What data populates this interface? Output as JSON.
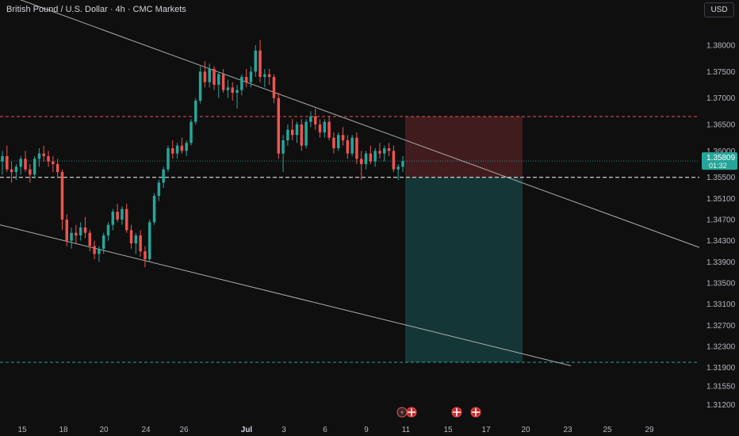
{
  "header": {
    "title": "British Pound / U.S. Dollar · 4h · CMC Markets",
    "currency_button": "USD"
  },
  "price_label": {
    "price": "1.35809",
    "countdown": "01:32"
  },
  "colors": {
    "up": "#26a69a",
    "down": "#ef5350",
    "background": "#0f0f0f",
    "stop_zone": "#4a1f22",
    "target_zone": "#16393a",
    "trendline": "#c8c8c8",
    "stop_line": "#ef5350",
    "target_line": "#26a69a"
  },
  "icons": [
    "lightning-flag-icon",
    "uk-flag-icon",
    "us-flag-icon",
    "uk-flag-icon"
  ],
  "chart_data": {
    "type": "candlestick",
    "symbol": "GBPUSD",
    "timeframe": "4h",
    "y_axis_ticks": [
      "1.38000",
      "1.37500",
      "1.37000",
      "1.36500",
      "1.36000",
      "1.35500",
      "1.35100",
      "1.34700",
      "1.34300",
      "1.33900",
      "1.33500",
      "1.33100",
      "1.32700",
      "1.32300",
      "1.31900",
      "1.31550",
      "1.31200"
    ],
    "x_axis_ticks": [
      "15",
      "18",
      "20",
      "24",
      "26",
      "Jul",
      "3",
      "6",
      "9",
      "11",
      "15",
      "17",
      "20",
      "23",
      "25",
      "29"
    ],
    "last_price": 1.35809,
    "ohlc": [
      [
        1.358,
        1.36,
        1.3555,
        1.359
      ],
      [
        1.359,
        1.361,
        1.356,
        1.3565
      ],
      [
        1.3565,
        1.358,
        1.354,
        1.356
      ],
      [
        1.356,
        1.3575,
        1.3545,
        1.357
      ],
      [
        1.357,
        1.359,
        1.3555,
        1.3585
      ],
      [
        1.3585,
        1.36,
        1.356,
        1.3565
      ],
      [
        1.3565,
        1.3575,
        1.354,
        1.3555
      ],
      [
        1.3555,
        1.359,
        1.3548,
        1.3585
      ],
      [
        1.3585,
        1.3605,
        1.357,
        1.3595
      ],
      [
        1.3595,
        1.361,
        1.358,
        1.359
      ],
      [
        1.359,
        1.36,
        1.357,
        1.358
      ],
      [
        1.358,
        1.359,
        1.356,
        1.3575
      ],
      [
        1.3575,
        1.3585,
        1.355,
        1.356
      ],
      [
        1.356,
        1.3565,
        1.345,
        1.347
      ],
      [
        1.347,
        1.348,
        1.342,
        1.343
      ],
      [
        1.343,
        1.3455,
        1.3415,
        1.3445
      ],
      [
        1.3445,
        1.346,
        1.3425,
        1.344
      ],
      [
        1.344,
        1.3465,
        1.343,
        1.3455
      ],
      [
        1.3455,
        1.3475,
        1.3435,
        1.3445
      ],
      [
        1.3445,
        1.345,
        1.341,
        1.342
      ],
      [
        1.342,
        1.343,
        1.3395,
        1.3405
      ],
      [
        1.3405,
        1.342,
        1.339,
        1.3415
      ],
      [
        1.3415,
        1.3445,
        1.3405,
        1.344
      ],
      [
        1.344,
        1.3465,
        1.343,
        1.346
      ],
      [
        1.346,
        1.349,
        1.345,
        1.3485
      ],
      [
        1.3485,
        1.35,
        1.3465,
        1.347
      ],
      [
        1.347,
        1.3495,
        1.346,
        1.349
      ],
      [
        1.349,
        1.35,
        1.3445,
        1.345
      ],
      [
        1.345,
        1.346,
        1.3415,
        1.3425
      ],
      [
        1.3425,
        1.3445,
        1.3405,
        1.344
      ],
      [
        1.344,
        1.345,
        1.34,
        1.341
      ],
      [
        1.341,
        1.342,
        1.338,
        1.3395
      ],
      [
        1.3395,
        1.347,
        1.339,
        1.3465
      ],
      [
        1.3465,
        1.352,
        1.346,
        1.3515
      ],
      [
        1.3515,
        1.3545,
        1.3505,
        1.354
      ],
      [
        1.354,
        1.357,
        1.353,
        1.3565
      ],
      [
        1.3565,
        1.361,
        1.356,
        1.3605
      ],
      [
        1.3605,
        1.362,
        1.3585,
        1.3595
      ],
      [
        1.3595,
        1.3615,
        1.3585,
        1.361
      ],
      [
        1.361,
        1.3625,
        1.3595,
        1.36
      ],
      [
        1.36,
        1.362,
        1.359,
        1.3615
      ],
      [
        1.3615,
        1.366,
        1.361,
        1.3655
      ],
      [
        1.3655,
        1.37,
        1.365,
        1.3695
      ],
      [
        1.3695,
        1.376,
        1.369,
        1.375
      ],
      [
        1.375,
        1.377,
        1.372,
        1.373
      ],
      [
        1.373,
        1.3765,
        1.372,
        1.3755
      ],
      [
        1.3755,
        1.376,
        1.3715,
        1.3725
      ],
      [
        1.3725,
        1.375,
        1.37,
        1.3745
      ],
      [
        1.3745,
        1.3755,
        1.371,
        1.3715
      ],
      [
        1.3715,
        1.3735,
        1.37,
        1.372
      ],
      [
        1.372,
        1.373,
        1.3695,
        1.371
      ],
      [
        1.371,
        1.3725,
        1.368,
        1.3715
      ],
      [
        1.3715,
        1.3745,
        1.3705,
        1.374
      ],
      [
        1.374,
        1.3755,
        1.372,
        1.373
      ],
      [
        1.373,
        1.376,
        1.372,
        1.375
      ],
      [
        1.375,
        1.38,
        1.374,
        1.379
      ],
      [
        1.379,
        1.381,
        1.373,
        1.374
      ],
      [
        1.374,
        1.3755,
        1.372,
        1.3745
      ],
      [
        1.3745,
        1.3755,
        1.3725,
        1.374
      ],
      [
        1.374,
        1.3745,
        1.369,
        1.37
      ],
      [
        1.37,
        1.371,
        1.3585,
        1.3595
      ],
      [
        1.3595,
        1.363,
        1.356,
        1.362
      ],
      [
        1.362,
        1.365,
        1.361,
        1.364
      ],
      [
        1.364,
        1.366,
        1.362,
        1.363
      ],
      [
        1.363,
        1.3655,
        1.3615,
        1.365
      ],
      [
        1.365,
        1.366,
        1.36,
        1.361
      ],
      [
        1.361,
        1.366,
        1.3605,
        1.3655
      ],
      [
        1.3655,
        1.3675,
        1.3645,
        1.3665
      ],
      [
        1.3665,
        1.368,
        1.364,
        1.365
      ],
      [
        1.365,
        1.366,
        1.3625,
        1.3635
      ],
      [
        1.3635,
        1.366,
        1.3625,
        1.3655
      ],
      [
        1.3655,
        1.3665,
        1.362,
        1.3625
      ],
      [
        1.3625,
        1.3635,
        1.3595,
        1.3605
      ],
      [
        1.3605,
        1.3635,
        1.36,
        1.363
      ],
      [
        1.363,
        1.3645,
        1.361,
        1.362
      ],
      [
        1.362,
        1.363,
        1.3585,
        1.3595
      ],
      [
        1.3595,
        1.363,
        1.359,
        1.3625
      ],
      [
        1.3625,
        1.3635,
        1.3575,
        1.3585
      ],
      [
        1.3585,
        1.36,
        1.3545,
        1.3575
      ],
      [
        1.3575,
        1.36,
        1.3565,
        1.3595
      ],
      [
        1.3595,
        1.361,
        1.3575,
        1.358
      ],
      [
        1.358,
        1.3605,
        1.357,
        1.36
      ],
      [
        1.36,
        1.3615,
        1.3585,
        1.3595
      ],
      [
        1.3595,
        1.361,
        1.358,
        1.3605
      ],
      [
        1.3605,
        1.3615,
        1.359,
        1.36
      ],
      [
        1.36,
        1.361,
        1.356,
        1.3565
      ],
      [
        1.3565,
        1.3575,
        1.3545,
        1.357
      ],
      [
        1.357,
        1.359,
        1.356,
        1.3581
      ]
    ],
    "annotations": {
      "stop_level": 1.3665,
      "entry_level": 1.355,
      "target_level": 1.32,
      "trendlines": [
        {
          "label": "upper channel line",
          "from": [
            0,
            1.39
          ],
          "to": [
            932,
            1.339
          ]
        },
        {
          "label": "lower channel line",
          "from": [
            0,
            1.346
          ],
          "to": [
            932,
            1.3115
          ]
        }
      ]
    }
  }
}
